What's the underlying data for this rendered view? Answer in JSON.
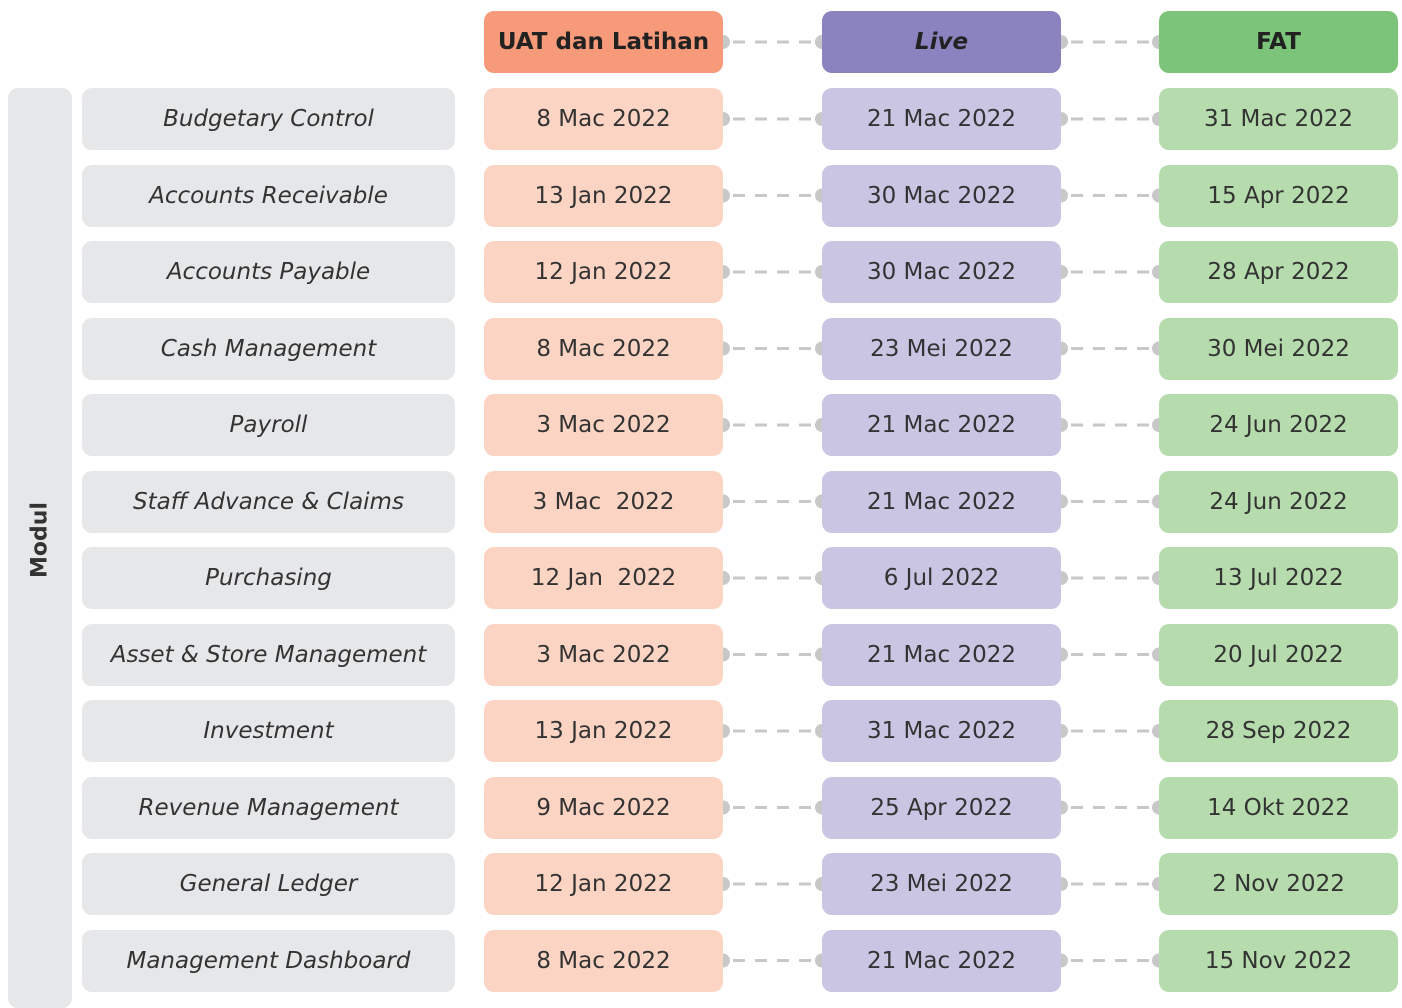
{
  "side_label": "Modul",
  "headers": [
    "UAT dan Latihan",
    "Live",
    "FAT"
  ],
  "rows": [
    {
      "module": "Budgetary Control",
      "dates": [
        "8 Mac 2022",
        "21 Mac 2022",
        "31 Mac 2022"
      ]
    },
    {
      "module": "Accounts Receivable",
      "dates": [
        "13 Jan 2022",
        "30 Mac 2022",
        "15 Apr 2022"
      ]
    },
    {
      "module": "Accounts Payable",
      "dates": [
        "12 Jan 2022",
        "30 Mac 2022",
        "28 Apr 2022"
      ]
    },
    {
      "module": "Cash Management",
      "dates": [
        "8 Mac 2022",
        "23 Mei 2022",
        "30 Mei 2022"
      ]
    },
    {
      "module": "Payroll",
      "dates": [
        "3 Mac 2022",
        "21 Mac 2022",
        "24 Jun 2022"
      ]
    },
    {
      "module": "Staff Advance & Claims",
      "dates": [
        "3 Mac  2022",
        "21 Mac 2022",
        "24 Jun 2022"
      ]
    },
    {
      "module": "Purchasing",
      "dates": [
        "12 Jan  2022",
        "6 Jul 2022",
        "13 Jul 2022"
      ]
    },
    {
      "module": "Asset & Store Management",
      "dates": [
        "3 Mac 2022",
        "21 Mac 2022",
        "20 Jul 2022"
      ]
    },
    {
      "module": "Investment",
      "dates": [
        "13 Jan 2022",
        "31 Mac 2022",
        "28 Sep 2022"
      ]
    },
    {
      "module": "Revenue Management",
      "dates": [
        "9 Mac 2022",
        "25 Apr 2022",
        "14 Okt 2022"
      ]
    },
    {
      "module": "General Ledger",
      "dates": [
        "12 Jan 2022",
        "23 Mei 2022",
        "2 Nov 2022"
      ]
    },
    {
      "module": "Management Dashboard",
      "dates": [
        "8 Mac 2022",
        "21 Mac 2022",
        "15 Nov 2022"
      ]
    }
  ]
}
